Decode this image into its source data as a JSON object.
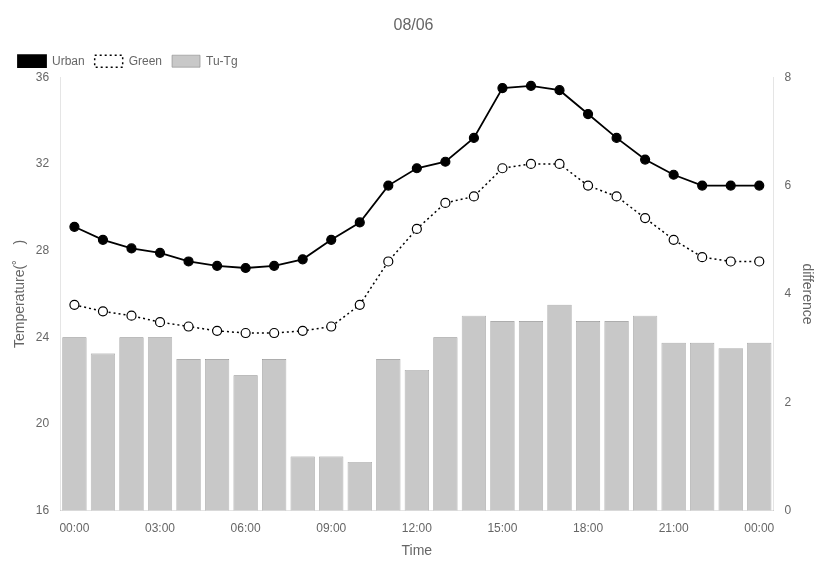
{
  "chart_data": {
    "type": "line",
    "title": "08/06",
    "xlabel": "Time",
    "ylabel": "Temperature(˚    )",
    "y2label": "difference",
    "x": [
      0,
      1,
      2,
      3,
      4,
      5,
      6,
      7,
      8,
      9,
      10,
      11,
      12,
      13,
      14,
      15,
      16,
      17,
      18,
      19,
      20,
      21,
      22,
      23,
      24
    ],
    "xlim": [
      -0.5,
      24.5
    ],
    "xticks": [
      {
        "value": 0,
        "label": "00:00"
      },
      {
        "value": 3,
        "label": "03:00"
      },
      {
        "value": 6,
        "label": "06:00"
      },
      {
        "value": 9,
        "label": "09:00"
      },
      {
        "value": 12,
        "label": "12:00"
      },
      {
        "value": 15,
        "label": "15:00"
      },
      {
        "value": 18,
        "label": "18:00"
      },
      {
        "value": 21,
        "label": "21:00"
      },
      {
        "value": 24,
        "label": "00:00"
      }
    ],
    "ylim": [
      16,
      36
    ],
    "yticks": [
      16,
      20,
      24,
      28,
      32,
      36
    ],
    "y2lim": [
      0,
      8
    ],
    "y2ticks": [
      0,
      2,
      4,
      6,
      8
    ],
    "grid": false,
    "legend": "upper left",
    "series": [
      {
        "name": "Urban",
        "type": "line",
        "color": "#000000",
        "marker": "circle",
        "line_style": "solid",
        "values": [
          29.1,
          28.5,
          28.1,
          27.9,
          27.5,
          27.3,
          27.2,
          27.3,
          27.6,
          28.5,
          29.3,
          31.0,
          31.8,
          32.1,
          33.2,
          35.5,
          35.6,
          35.4,
          34.3,
          33.2,
          32.2,
          31.5,
          31.0,
          31.0,
          31.0
        ]
      },
      {
        "name": "Green",
        "type": "line",
        "color": "#000000",
        "marker": "circle",
        "line_style": "dotted",
        "values": [
          25.5,
          25.2,
          25.0,
          24.7,
          24.5,
          24.3,
          24.2,
          24.2,
          24.3,
          24.5,
          25.5,
          27.5,
          29.0,
          30.2,
          30.5,
          31.8,
          32.0,
          32.0,
          31.0,
          30.5,
          29.5,
          28.5,
          27.7,
          27.5,
          27.5
        ]
      },
      {
        "name": "Tu-Tg",
        "type": "bar",
        "axis": "y2",
        "color": "#c8c8c8",
        "values": [
          3.2,
          2.9,
          3.2,
          3.2,
          2.8,
          2.8,
          2.5,
          2.8,
          1.0,
          1.0,
          0.9,
          2.8,
          2.6,
          3.2,
          3.6,
          3.5,
          3.5,
          3.8,
          3.5,
          3.5,
          3.6,
          3.1,
          3.1,
          3.0,
          3.1
        ]
      }
    ]
  }
}
